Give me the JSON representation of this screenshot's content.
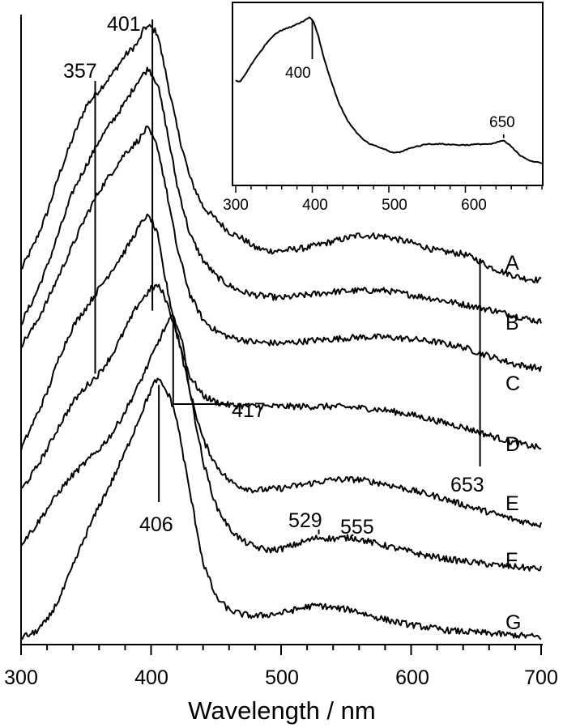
{
  "chart_data": [
    {
      "id": "main",
      "type": "line",
      "xlabel": "Wavelength / nm",
      "ylabel": "",
      "xlim": [
        300,
        700
      ],
      "ylim": [
        0,
        10
      ],
      "x_ticks": [
        300,
        400,
        500,
        600,
        700
      ],
      "x_tick_labels": [
        "300",
        "400",
        "500",
        "600",
        "700"
      ],
      "grid": false,
      "series": [
        {
          "name": "A",
          "color": "#000000",
          "points": [
            [
              300,
              5.95
            ],
            [
              310,
              6.35
            ],
            [
              320,
              6.85
            ],
            [
              330,
              7.5
            ],
            [
              340,
              8.05
            ],
            [
              350,
              8.55
            ],
            [
              360,
              8.8
            ],
            [
              370,
              9.05
            ],
            [
              380,
              9.35
            ],
            [
              390,
              9.55
            ],
            [
              395,
              9.8
            ],
            [
              400,
              9.8
            ],
            [
              405,
              9.7
            ],
            [
              410,
              9.2
            ],
            [
              420,
              8.2
            ],
            [
              430,
              7.4
            ],
            [
              440,
              6.95
            ],
            [
              450,
              6.75
            ],
            [
              460,
              6.55
            ],
            [
              470,
              6.45
            ],
            [
              480,
              6.3
            ],
            [
              490,
              6.25
            ],
            [
              500,
              6.25
            ],
            [
              520,
              6.3
            ],
            [
              540,
              6.4
            ],
            [
              560,
              6.5
            ],
            [
              580,
              6.48
            ],
            [
              600,
              6.38
            ],
            [
              620,
              6.25
            ],
            [
              640,
              6.2
            ],
            [
              650,
              6.12
            ],
            [
              660,
              6.0
            ],
            [
              670,
              5.92
            ],
            [
              685,
              5.82
            ],
            [
              700,
              5.78
            ]
          ]
        },
        {
          "name": "B",
          "color": "#000000",
          "points": [
            [
              300,
              5.1
            ],
            [
              310,
              5.5
            ],
            [
              320,
              6.0
            ],
            [
              330,
              6.6
            ],
            [
              340,
              7.2
            ],
            [
              350,
              7.6
            ],
            [
              360,
              8.0
            ],
            [
              370,
              8.3
            ],
            [
              380,
              8.6
            ],
            [
              390,
              8.95
            ],
            [
              398,
              9.15
            ],
            [
              405,
              8.9
            ],
            [
              410,
              8.4
            ],
            [
              420,
              7.3
            ],
            [
              430,
              6.5
            ],
            [
              440,
              6.1
            ],
            [
              450,
              5.85
            ],
            [
              460,
              5.7
            ],
            [
              470,
              5.6
            ],
            [
              480,
              5.55
            ],
            [
              500,
              5.5
            ],
            [
              520,
              5.55
            ],
            [
              540,
              5.6
            ],
            [
              560,
              5.62
            ],
            [
              580,
              5.62
            ],
            [
              600,
              5.55
            ],
            [
              620,
              5.48
            ],
            [
              640,
              5.4
            ],
            [
              660,
              5.32
            ],
            [
              680,
              5.22
            ],
            [
              700,
              5.12
            ]
          ]
        },
        {
          "name": "C",
          "color": "#000000",
          "points": [
            [
              300,
              4.75
            ],
            [
              310,
              5.05
            ],
            [
              320,
              5.45
            ],
            [
              330,
              5.9
            ],
            [
              340,
              6.35
            ],
            [
              350,
              6.8
            ],
            [
              360,
              7.2
            ],
            [
              370,
              7.5
            ],
            [
              380,
              7.8
            ],
            [
              390,
              8.0
            ],
            [
              397,
              8.2
            ],
            [
              405,
              7.9
            ],
            [
              410,
              7.4
            ],
            [
              420,
              6.3
            ],
            [
              430,
              5.55
            ],
            [
              440,
              5.15
            ],
            [
              450,
              4.98
            ],
            [
              460,
              4.88
            ],
            [
              480,
              4.8
            ],
            [
              500,
              4.78
            ],
            [
              520,
              4.82
            ],
            [
              540,
              4.85
            ],
            [
              560,
              4.88
            ],
            [
              580,
              4.88
            ],
            [
              600,
              4.85
            ],
            [
              620,
              4.8
            ],
            [
              640,
              4.72
            ],
            [
              660,
              4.58
            ],
            [
              680,
              4.45
            ],
            [
              700,
              4.38
            ]
          ]
        },
        {
          "name": "D",
          "color": "#000000",
          "points": [
            [
              300,
              3.1
            ],
            [
              310,
              3.55
            ],
            [
              320,
              4.0
            ],
            [
              330,
              4.6
            ],
            [
              340,
              5.05
            ],
            [
              350,
              5.35
            ],
            [
              360,
              5.65
            ],
            [
              370,
              5.95
            ],
            [
              380,
              6.25
            ],
            [
              390,
              6.6
            ],
            [
              396,
              6.8
            ],
            [
              400,
              6.75
            ],
            [
              405,
              6.5
            ],
            [
              410,
              5.9
            ],
            [
              420,
              4.9
            ],
            [
              430,
              4.25
            ],
            [
              440,
              3.95
            ],
            [
              450,
              3.85
            ],
            [
              460,
              3.8
            ],
            [
              480,
              3.78
            ],
            [
              500,
              3.78
            ],
            [
              520,
              3.78
            ],
            [
              540,
              3.78
            ],
            [
              560,
              3.76
            ],
            [
              580,
              3.72
            ],
            [
              600,
              3.65
            ],
            [
              620,
              3.55
            ],
            [
              640,
              3.45
            ],
            [
              660,
              3.32
            ],
            [
              680,
              3.2
            ],
            [
              700,
              3.12
            ]
          ]
        },
        {
          "name": "E",
          "color": "#000000",
          "points": [
            [
              300,
              2.45
            ],
            [
              310,
              2.75
            ],
            [
              320,
              3.1
            ],
            [
              330,
              3.5
            ],
            [
              340,
              3.85
            ],
            [
              350,
              4.1
            ],
            [
              360,
              4.3
            ],
            [
              370,
              4.6
            ],
            [
              380,
              5.0
            ],
            [
              390,
              5.4
            ],
            [
              400,
              5.65
            ],
            [
              405,
              5.7
            ],
            [
              410,
              5.55
            ],
            [
              420,
              4.95
            ],
            [
              430,
              4.0
            ],
            [
              440,
              3.25
            ],
            [
              450,
              2.85
            ],
            [
              460,
              2.6
            ],
            [
              470,
              2.5
            ],
            [
              480,
              2.45
            ],
            [
              500,
              2.48
            ],
            [
              520,
              2.55
            ],
            [
              540,
              2.62
            ],
            [
              560,
              2.62
            ],
            [
              580,
              2.55
            ],
            [
              600,
              2.45
            ],
            [
              620,
              2.35
            ],
            [
              640,
              2.22
            ],
            [
              660,
              2.1
            ],
            [
              680,
              1.98
            ],
            [
              700,
              1.9
            ]
          ]
        },
        {
          "name": "F",
          "color": "#000000",
          "points": [
            [
              300,
              1.6
            ],
            [
              310,
              1.85
            ],
            [
              320,
              2.15
            ],
            [
              330,
              2.45
            ],
            [
              340,
              2.7
            ],
            [
              350,
              2.9
            ],
            [
              360,
              3.1
            ],
            [
              370,
              3.35
            ],
            [
              380,
              3.7
            ],
            [
              390,
              4.1
            ],
            [
              400,
              4.55
            ],
            [
              410,
              5.0
            ],
            [
              416,
              5.2
            ],
            [
              420,
              5.1
            ],
            [
              425,
              4.7
            ],
            [
              430,
              4.0
            ],
            [
              440,
              2.9
            ],
            [
              450,
              2.2
            ],
            [
              460,
              1.85
            ],
            [
              470,
              1.65
            ],
            [
              480,
              1.55
            ],
            [
              490,
              1.5
            ],
            [
              500,
              1.52
            ],
            [
              510,
              1.58
            ],
            [
              520,
              1.65
            ],
            [
              529,
              1.7
            ],
            [
              540,
              1.68
            ],
            [
              555,
              1.7
            ],
            [
              570,
              1.62
            ],
            [
              590,
              1.52
            ],
            [
              610,
              1.42
            ],
            [
              630,
              1.35
            ],
            [
              650,
              1.3
            ],
            [
              670,
              1.25
            ],
            [
              700,
              1.2
            ]
          ]
        },
        {
          "name": "G",
          "color": "#000000",
          "points": [
            [
              300,
              0.12
            ],
            [
              310,
              0.18
            ],
            [
              320,
              0.38
            ],
            [
              330,
              0.75
            ],
            [
              340,
              1.25
            ],
            [
              350,
              1.75
            ],
            [
              360,
              2.2
            ],
            [
              370,
              2.6
            ],
            [
              380,
              3.05
            ],
            [
              390,
              3.55
            ],
            [
              400,
              4.05
            ],
            [
              404,
              4.2
            ],
            [
              408,
              4.15
            ],
            [
              415,
              3.9
            ],
            [
              420,
              3.55
            ],
            [
              430,
              2.4
            ],
            [
              440,
              1.3
            ],
            [
              450,
              0.75
            ],
            [
              460,
              0.55
            ],
            [
              470,
              0.48
            ],
            [
              480,
              0.45
            ],
            [
              500,
              0.5
            ],
            [
              520,
              0.6
            ],
            [
              530,
              0.62
            ],
            [
              540,
              0.58
            ],
            [
              555,
              0.55
            ],
            [
              570,
              0.45
            ],
            [
              590,
              0.35
            ],
            [
              610,
              0.28
            ],
            [
              630,
              0.22
            ],
            [
              660,
              0.18
            ],
            [
              700,
              0.12
            ]
          ]
        }
      ],
      "trace_labels": [
        "A",
        "B",
        "C",
        "D",
        "E",
        "F",
        "G"
      ],
      "annotations": [
        {
          "text": "401",
          "x": 401
        },
        {
          "text": "357",
          "x": 357
        },
        {
          "text": "417",
          "x": 417
        },
        {
          "text": "406",
          "x": 406
        },
        {
          "text": "653",
          "x": 653
        },
        {
          "text": "529",
          "x": 529
        },
        {
          "text": "555",
          "x": 555
        }
      ]
    },
    {
      "id": "inset",
      "type": "line",
      "xlim": [
        300,
        700
      ],
      "ylim": [
        0,
        10
      ],
      "x_ticks": [
        300,
        400,
        500,
        600
      ],
      "x_tick_labels": [
        "300",
        "400",
        "500",
        "600"
      ],
      "grid": false,
      "series": [
        {
          "color": "#000000",
          "points": [
            [
              300,
              5.9
            ],
            [
              305,
              5.8
            ],
            [
              312,
              6.2
            ],
            [
              320,
              6.8
            ],
            [
              330,
              7.4
            ],
            [
              340,
              8.0
            ],
            [
              350,
              8.5
            ],
            [
              360,
              8.75
            ],
            [
              370,
              8.9
            ],
            [
              380,
              9.1
            ],
            [
              390,
              9.3
            ],
            [
              397,
              9.5
            ],
            [
              402,
              9.2
            ],
            [
              408,
              8.4
            ],
            [
              415,
              7.2
            ],
            [
              425,
              5.8
            ],
            [
              435,
              4.6
            ],
            [
              445,
              3.7
            ],
            [
              455,
              3.1
            ],
            [
              465,
              2.6
            ],
            [
              475,
              2.3
            ],
            [
              485,
              2.15
            ],
            [
              495,
              2.0
            ],
            [
              505,
              1.8
            ],
            [
              515,
              1.85
            ],
            [
              530,
              2.1
            ],
            [
              550,
              2.3
            ],
            [
              570,
              2.3
            ],
            [
              590,
              2.25
            ],
            [
              605,
              2.25
            ],
            [
              620,
              2.3
            ],
            [
              635,
              2.3
            ],
            [
              645,
              2.45
            ],
            [
              650,
              2.5
            ],
            [
              660,
              2.15
            ],
            [
              670,
              1.7
            ],
            [
              685,
              1.35
            ],
            [
              700,
              1.2
            ]
          ]
        }
      ],
      "annotations": [
        {
          "text": "400",
          "x": 400
        },
        {
          "text": "650",
          "x": 650
        }
      ]
    }
  ]
}
